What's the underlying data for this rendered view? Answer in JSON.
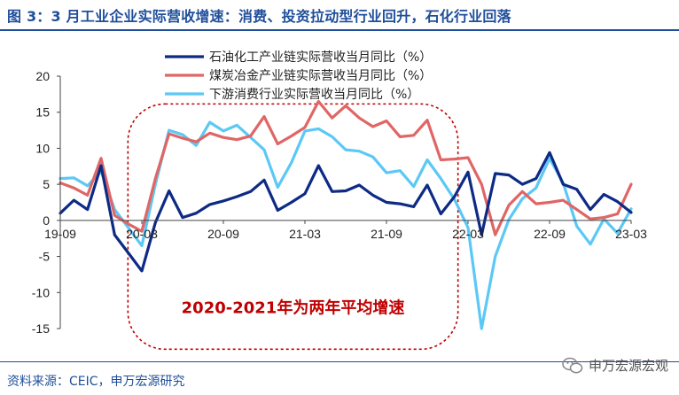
{
  "title": "图 3：3 月工业企业实际营收增速：消费、投资拉动型行业回升，石化行业回落",
  "source": "资料来源：CEIC，申万宏源研究",
  "watermark": "申万宏源宏观",
  "colors": {
    "accent": "#1f4e9a",
    "annotation": "#c00000"
  },
  "chart_data": {
    "type": "line",
    "x": [
      "19-09",
      "19-10",
      "19-11",
      "19-12",
      "20-01",
      "20-02",
      "20-03",
      "20-04",
      "20-05",
      "20-06",
      "20-07",
      "20-08",
      "20-09",
      "20-10",
      "20-11",
      "20-12",
      "21-01",
      "21-02",
      "21-03",
      "21-04",
      "21-05",
      "21-06",
      "21-07",
      "21-08",
      "21-09",
      "21-10",
      "21-11",
      "21-12",
      "22-01",
      "22-02",
      "22-03",
      "22-04",
      "22-05",
      "22-06",
      "22-07",
      "22-08",
      "22-09",
      "22-10",
      "22-11",
      "22-12",
      "23-01",
      "23-02",
      "23-03"
    ],
    "x_tick_labels": [
      "19-09",
      "20-03",
      "20-09",
      "21-03",
      "21-09",
      "22-03",
      "22-09",
      "23-03"
    ],
    "ylim": [
      -15,
      20
    ],
    "y_ticks": [
      -15,
      -10,
      -5,
      0,
      5,
      10,
      15,
      20
    ],
    "legend_position": "top-center",
    "series": [
      {
        "name": "石油化工产业链实际营收当月同比（%）",
        "color": "#0d2a85",
        "values": [
          1.0,
          2.8,
          1.5,
          7.6,
          -2.0,
          -4.5,
          -7.0,
          -0.3,
          4.1,
          0.4,
          1.0,
          2.2,
          2.7,
          3.3,
          4.0,
          5.6,
          1.4,
          2.5,
          3.7,
          7.6,
          4.0,
          4.1,
          4.9,
          3.5,
          2.5,
          2.3,
          1.9,
          4.9,
          0.9,
          3.3,
          6.7,
          -2.0,
          6.5,
          6.3,
          5.0,
          5.8,
          9.4,
          5.0,
          4.3,
          1.5,
          3.6,
          2.6,
          1.1
        ]
      },
      {
        "name": "煤炭冶金产业链实际营收当月同比（%）",
        "color": "#e06666",
        "values": [
          5.2,
          4.5,
          3.5,
          8.6,
          0.7,
          -0.5,
          -1.5,
          5.8,
          12.0,
          11.4,
          10.9,
          12.1,
          11.5,
          11.2,
          11.7,
          14.4,
          10.6,
          11.7,
          12.9,
          16.5,
          14.2,
          15.9,
          14.2,
          13.0,
          13.8,
          11.6,
          11.8,
          13.9,
          8.4,
          8.5,
          8.7,
          5.0,
          -2.0,
          2.1,
          4.0,
          2.3,
          2.5,
          2.8,
          1.5,
          0.2,
          0.4,
          0.9,
          5.0
        ]
      },
      {
        "name": "下游消费行业实际营收当月同比（%）",
        "color": "#5bc8f5",
        "values": [
          5.8,
          5.9,
          4.8,
          6.8,
          1.5,
          -1.0,
          -3.5,
          5.0,
          12.5,
          11.9,
          10.4,
          13.6,
          12.4,
          13.2,
          11.5,
          9.8,
          4.6,
          8.0,
          12.4,
          12.7,
          11.6,
          9.8,
          9.6,
          8.8,
          6.6,
          6.9,
          4.7,
          8.4,
          5.8,
          2.9,
          -1.0,
          -15.0,
          -5.0,
          0.1,
          3.0,
          4.5,
          8.6,
          5.2,
          -0.8,
          -3.3,
          0.2,
          -1.8,
          1.6
        ]
      }
    ],
    "annotation": {
      "text": "2020-2021年为两年平均增速"
    }
  }
}
